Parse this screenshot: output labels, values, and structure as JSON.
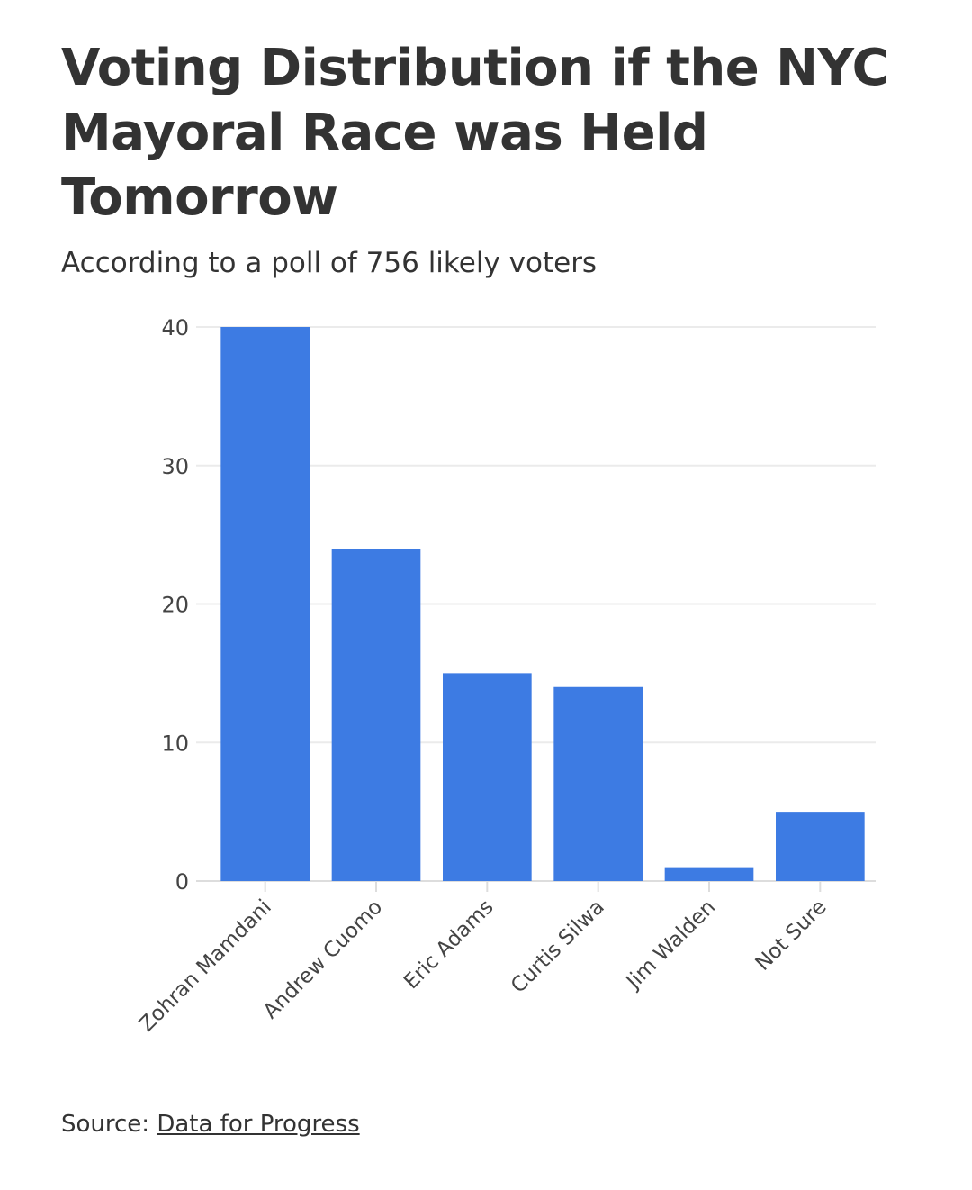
{
  "title": "Voting Distribution if the NYC Mayoral Race was Held Tomorrow",
  "subtitle": "According to a poll of 756 likely voters",
  "source": {
    "prefix": "Source: ",
    "link_text": "Data for Progress"
  },
  "colors": {
    "bar": "#3d7be3",
    "grid": "#ebebeb",
    "axis": "#dddddd"
  },
  "chart_data": {
    "type": "bar",
    "categories": [
      "Zohran Mamdani",
      "Andrew Cuomo",
      "Eric Adams",
      "Curtis Silwa",
      "Jim Walden",
      "Not Sure"
    ],
    "values": [
      40,
      24,
      15,
      14,
      1,
      5
    ],
    "title": "Voting Distribution if the NYC Mayoral Race was Held Tomorrow",
    "subtitle": "According to a poll of 756 likely voters",
    "xlabel": "",
    "ylabel": "",
    "ylim": [
      0,
      40
    ],
    "yticks": [
      0,
      10,
      20,
      30,
      40
    ],
    "grid": true,
    "legend": "none"
  }
}
